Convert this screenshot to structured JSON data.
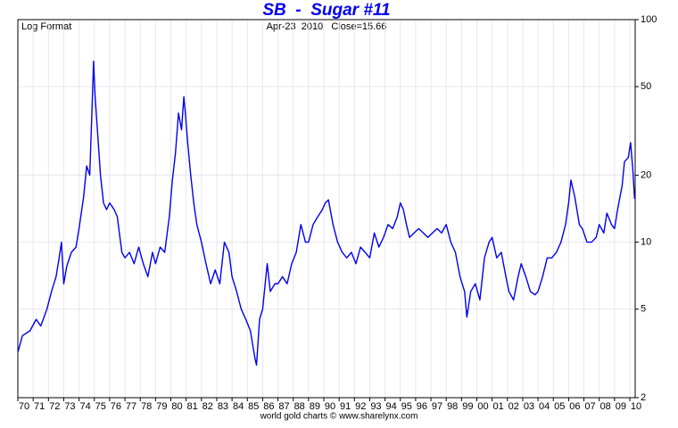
{
  "chart_data": {
    "type": "line",
    "title": "SB  -  Sugar #11",
    "subtitle": "Apr-23  2010   Close=15.66",
    "note": "Log Format",
    "source": "world gold charts © www.sharelynx.com",
    "log_scale": true,
    "grid": true,
    "xlim": [
      1970,
      2010.35
    ],
    "ylim": [
      2,
      100
    ],
    "yticks": [
      2,
      5,
      10,
      20,
      50,
      100
    ],
    "xticks": [
      {
        "value": 1970,
        "label": "70"
      },
      {
        "value": 1971,
        "label": "71"
      },
      {
        "value": 1972,
        "label": "72"
      },
      {
        "value": 1973,
        "label": "73"
      },
      {
        "value": 1974,
        "label": "74"
      },
      {
        "value": 1975,
        "label": "75"
      },
      {
        "value": 1976,
        "label": "76"
      },
      {
        "value": 1977,
        "label": "77"
      },
      {
        "value": 1978,
        "label": "78"
      },
      {
        "value": 1979,
        "label": "79"
      },
      {
        "value": 1980,
        "label": "80"
      },
      {
        "value": 1981,
        "label": "81"
      },
      {
        "value": 1982,
        "label": "82"
      },
      {
        "value": 1983,
        "label": "83"
      },
      {
        "value": 1984,
        "label": "84"
      },
      {
        "value": 1985,
        "label": "85"
      },
      {
        "value": 1986,
        "label": "86"
      },
      {
        "value": 1987,
        "label": "87"
      },
      {
        "value": 1988,
        "label": "88"
      },
      {
        "value": 1989,
        "label": "89"
      },
      {
        "value": 1990,
        "label": "90"
      },
      {
        "value": 1991,
        "label": "91"
      },
      {
        "value": 1992,
        "label": "92"
      },
      {
        "value": 1993,
        "label": "93"
      },
      {
        "value": 1994,
        "label": "94"
      },
      {
        "value": 1995,
        "label": "95"
      },
      {
        "value": 1996,
        "label": "96"
      },
      {
        "value": 1997,
        "label": "97"
      },
      {
        "value": 1998,
        "label": "98"
      },
      {
        "value": 1999,
        "label": "99"
      },
      {
        "value": 2000,
        "label": "00"
      },
      {
        "value": 2001,
        "label": "01"
      },
      {
        "value": 2002,
        "label": "02"
      },
      {
        "value": 2003,
        "label": "03"
      },
      {
        "value": 2004,
        "label": "04"
      },
      {
        "value": 2005,
        "label": "05"
      },
      {
        "value": 2006,
        "label": "06"
      },
      {
        "value": 2007,
        "label": "07"
      },
      {
        "value": 2008,
        "label": "08"
      },
      {
        "value": 2009,
        "label": "09"
      },
      {
        "value": 2010,
        "label": "10"
      }
    ],
    "x": [
      1970.0,
      1970.3,
      1970.8,
      1971.2,
      1971.5,
      1971.9,
      1972.2,
      1972.5,
      1972.7,
      1972.85,
      1973.0,
      1973.2,
      1973.5,
      1973.8,
      1974.0,
      1974.3,
      1974.5,
      1974.7,
      1974.85,
      1974.95,
      1975.05,
      1975.2,
      1975.4,
      1975.6,
      1975.8,
      1976.0,
      1976.3,
      1976.5,
      1976.8,
      1977.0,
      1977.3,
      1977.6,
      1977.9,
      1978.2,
      1978.5,
      1978.8,
      1979.0,
      1979.3,
      1979.6,
      1979.9,
      1980.1,
      1980.3,
      1980.5,
      1980.7,
      1980.85,
      1980.95,
      1981.1,
      1981.3,
      1981.5,
      1981.7,
      1982.0,
      1982.3,
      1982.6,
      1982.9,
      1983.2,
      1983.5,
      1983.8,
      1984.0,
      1984.3,
      1984.6,
      1984.9,
      1985.2,
      1985.5,
      1985.6,
      1985.8,
      1986.0,
      1986.3,
      1986.5,
      1986.8,
      1987.0,
      1987.3,
      1987.6,
      1987.9,
      1988.2,
      1988.5,
      1988.8,
      1989.0,
      1989.3,
      1989.6,
      1989.9,
      1990.1,
      1990.3,
      1990.6,
      1990.9,
      1991.2,
      1991.5,
      1991.8,
      1992.1,
      1992.4,
      1992.7,
      1993.0,
      1993.3,
      1993.6,
      1993.9,
      1994.2,
      1994.5,
      1994.8,
      1995.0,
      1995.2,
      1995.4,
      1995.6,
      1995.9,
      1996.2,
      1996.5,
      1996.8,
      1997.1,
      1997.4,
      1997.7,
      1998.0,
      1998.3,
      1998.6,
      1998.9,
      1999.2,
      1999.35,
      1999.6,
      1999.9,
      2000.2,
      2000.5,
      2000.8,
      2001.0,
      2001.3,
      2001.6,
      2001.9,
      2002.1,
      2002.4,
      2002.7,
      2002.9,
      2003.2,
      2003.5,
      2003.8,
      2004.0,
      2004.3,
      2004.6,
      2004.9,
      2005.2,
      2005.5,
      2005.8,
      2006.0,
      2006.15,
      2006.4,
      2006.7,
      2006.9,
      2007.2,
      2007.5,
      2007.8,
      2008.0,
      2008.3,
      2008.5,
      2008.8,
      2009.0,
      2009.2,
      2009.5,
      2009.65,
      2009.9,
      2010.05,
      2010.2,
      2010.31
    ],
    "series": [
      {
        "name": "SB",
        "color": "#0000ee",
        "values": [
          3.2,
          3.8,
          4.0,
          4.5,
          4.2,
          5.0,
          6.0,
          7.0,
          8.5,
          10.0,
          6.5,
          7.8,
          9.0,
          9.5,
          11.5,
          16,
          22,
          20,
          40,
          65,
          45,
          32,
          20,
          15,
          14,
          15,
          14,
          13,
          9,
          8.5,
          9,
          8,
          9.5,
          8,
          7,
          9,
          8,
          9.5,
          9,
          13,
          19,
          25,
          38,
          32,
          45,
          38,
          28,
          20,
          15,
          12,
          10,
          8,
          6.5,
          7.5,
          6.5,
          10,
          9,
          7,
          6,
          5,
          4.5,
          4,
          3,
          2.8,
          4.5,
          5,
          8,
          6,
          6.5,
          6.5,
          7,
          6.5,
          8,
          9,
          12,
          10,
          10,
          12,
          13,
          14,
          15,
          15.5,
          12,
          10,
          9,
          8.5,
          9,
          8,
          9.5,
          9,
          8.5,
          11,
          9.5,
          10.5,
          12,
          11.5,
          13,
          15,
          14,
          12,
          10.5,
          11,
          11.5,
          11,
          10.5,
          11,
          11.5,
          11,
          12,
          10,
          9,
          7,
          6,
          4.6,
          6,
          6.5,
          5.5,
          8.5,
          10,
          10.5,
          8.5,
          9,
          7,
          6,
          5.5,
          7,
          8,
          7,
          6,
          5.8,
          6,
          7,
          8.5,
          8.5,
          9,
          10,
          12,
          15,
          19,
          16,
          12,
          11.5,
          10,
          10,
          10.5,
          12,
          11,
          13.5,
          12,
          11.5,
          14,
          18,
          23,
          24,
          28,
          21,
          15.66
        ]
      }
    ]
  }
}
